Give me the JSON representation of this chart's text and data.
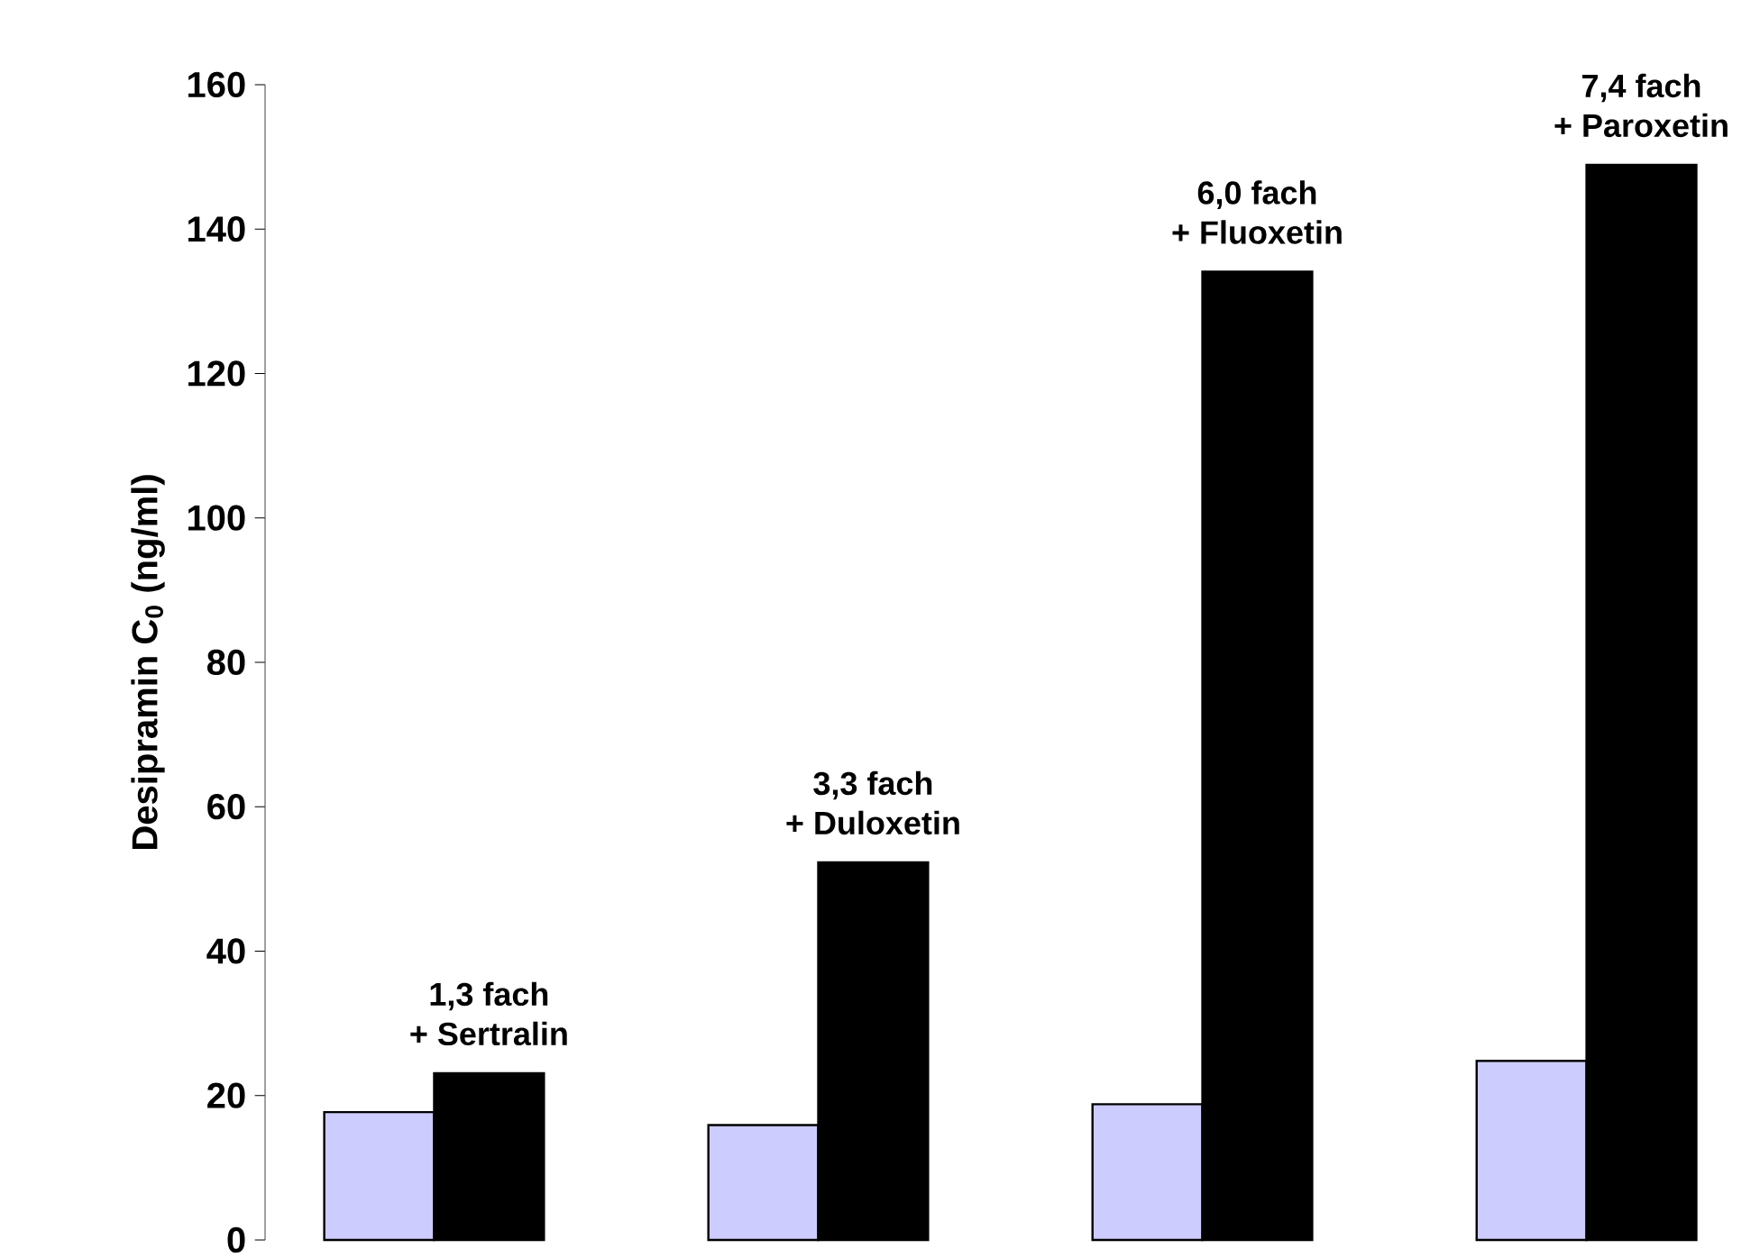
{
  "chart_data": {
    "type": "bar",
    "ylabel": "Desipramin C$_{0}$ (ng/ml)",
    "categories": [
      null,
      null,
      null,
      null
    ],
    "series": [
      {
        "color": "#ccccff",
        "values": [
          17.7,
          15.9,
          18.8,
          24.8
        ]
      },
      {
        "color": "#000000",
        "values": [
          23.1,
          52.3,
          134.1,
          148.9
        ]
      }
    ],
    "ylim": [
      0,
      160
    ],
    "yticks": [
      0,
      20,
      40,
      60,
      80,
      100,
      120,
      140,
      160
    ],
    "annotations": [
      "1,3 fach",
      "+ Sertralin",
      "3,3 fach",
      "+ Duloxetin",
      "6,0 fach",
      "+ Fluoxetin",
      "7,4 fach",
      "+ Paroxetin"
    ]
  }
}
